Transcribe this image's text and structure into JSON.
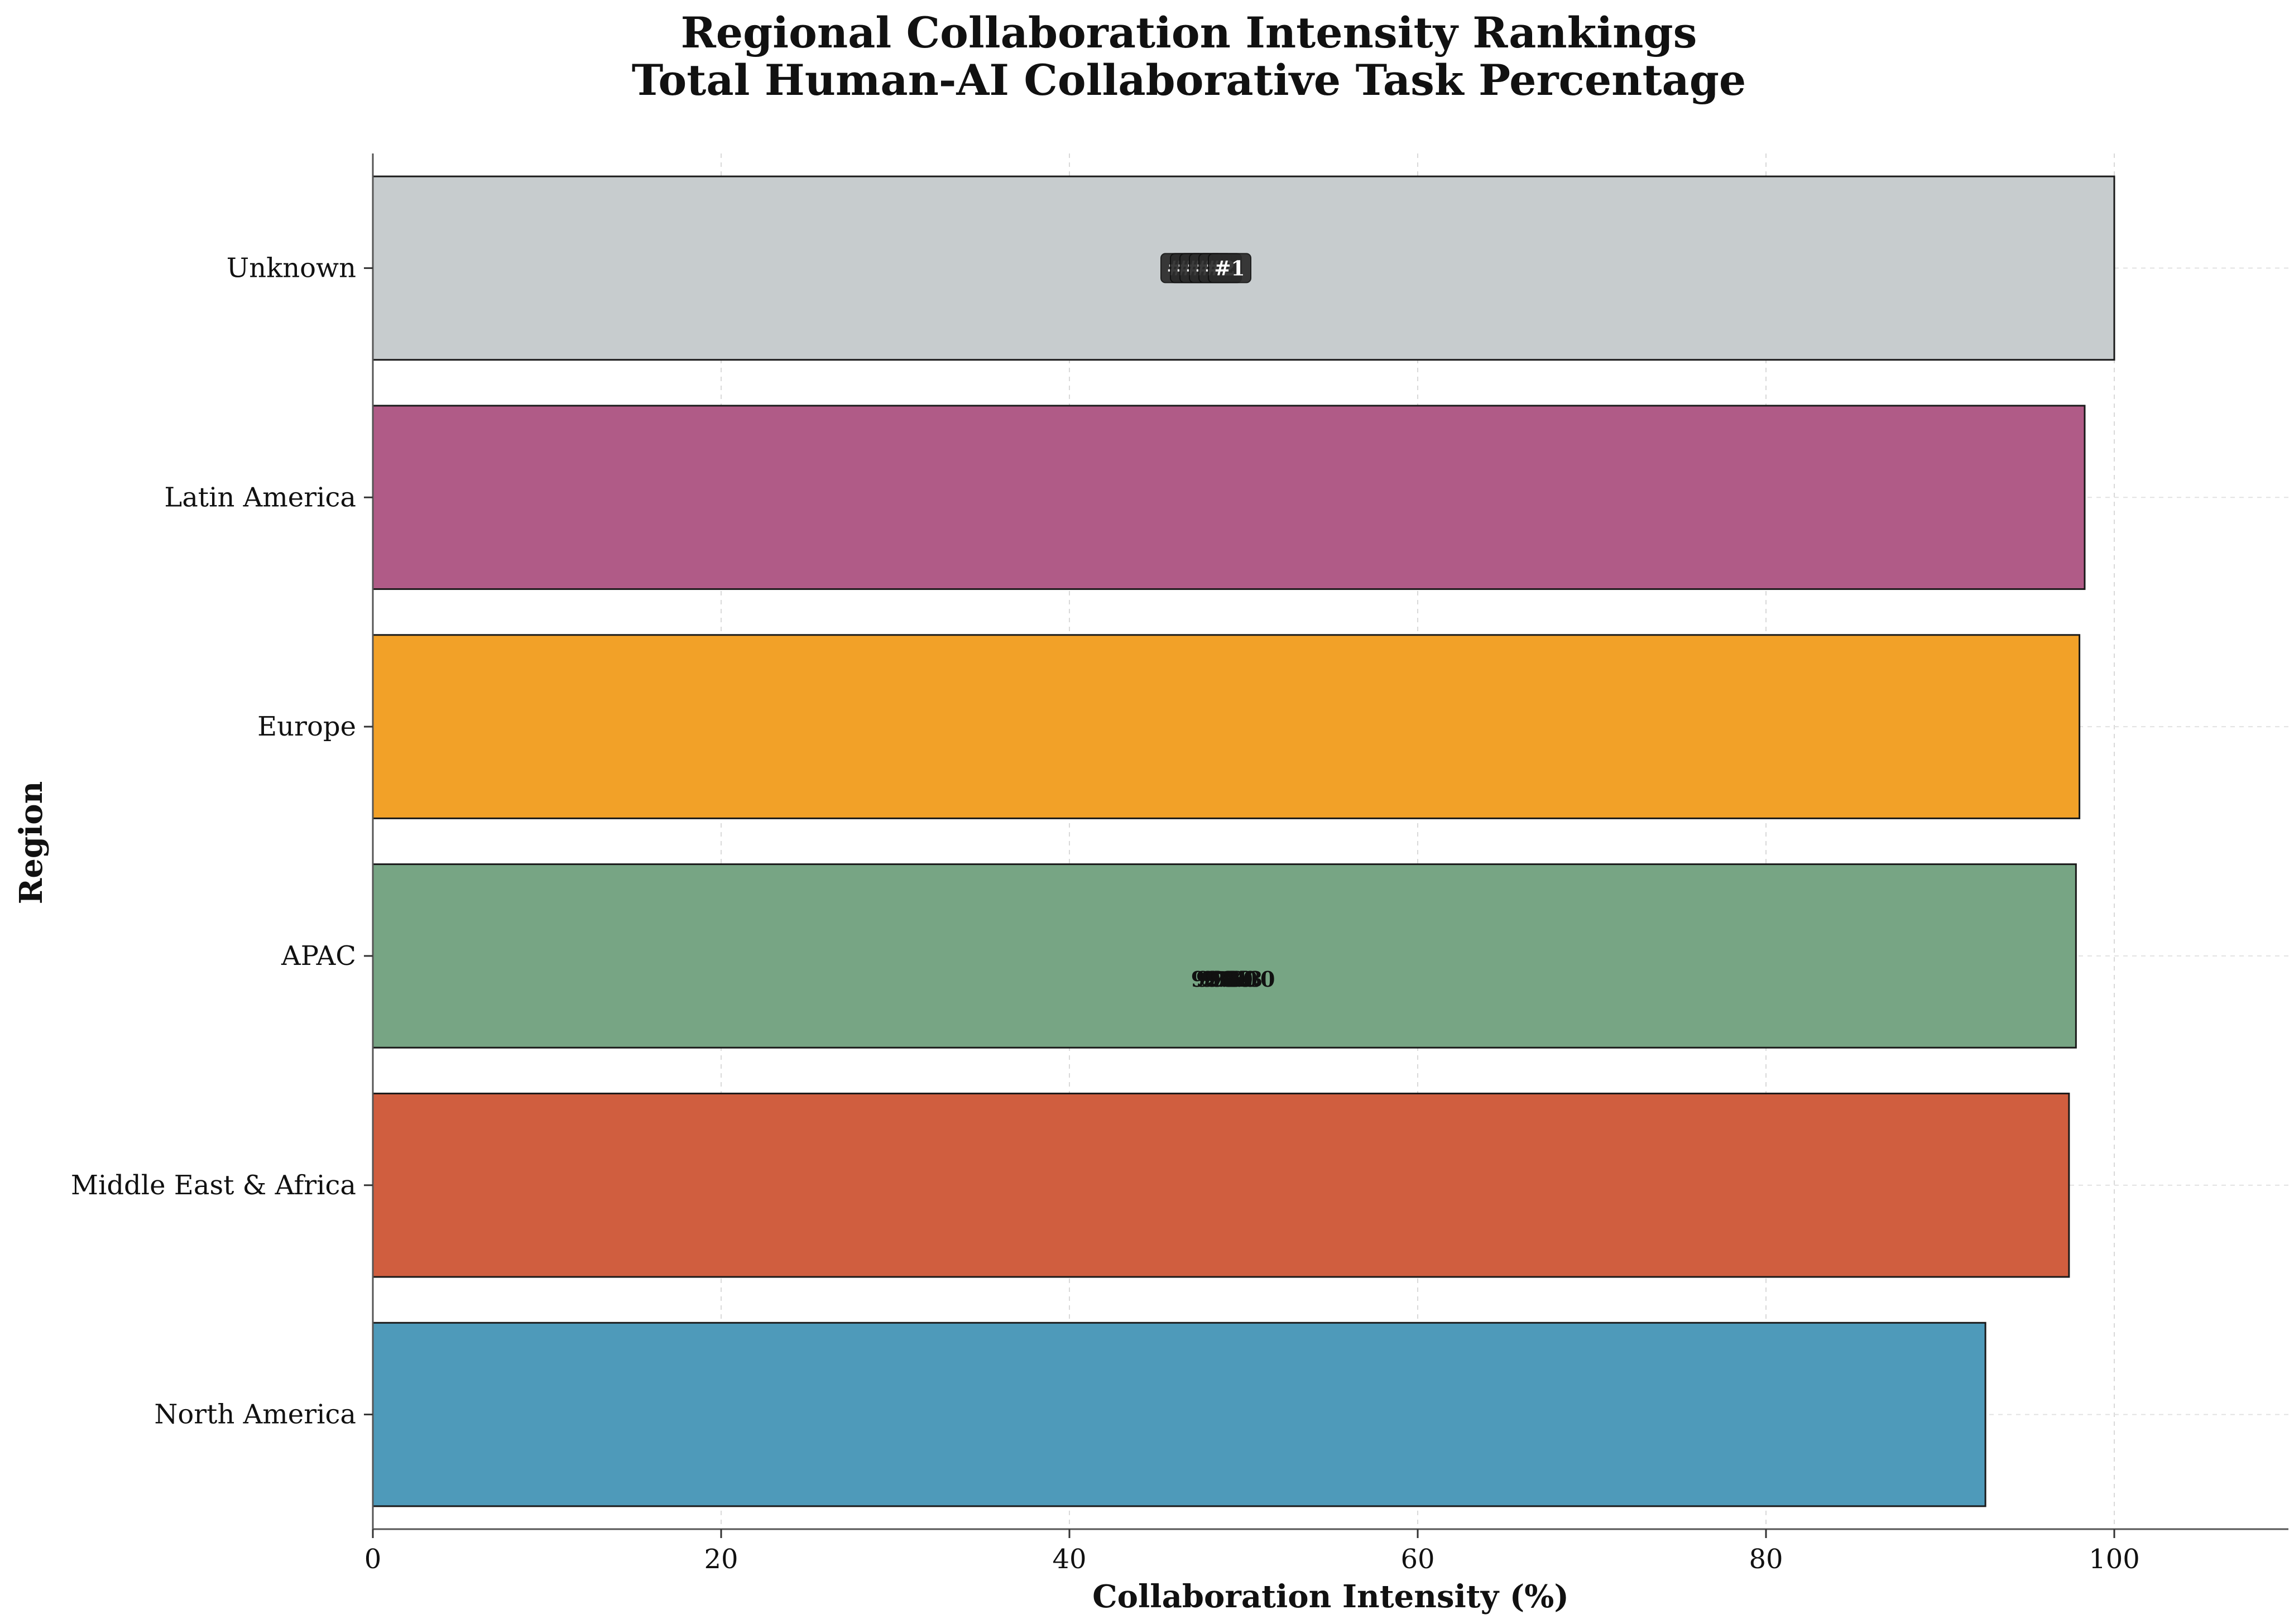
{
  "chart_data": {
    "type": "bar",
    "orientation": "horizontal",
    "title": "Regional Collaboration Intensity Rankings",
    "subtitle": "Total Human-AI Collaborative Task Percentage",
    "xlabel": "Collaboration Intensity (%)",
    "ylabel": "Region",
    "xlim": [
      0,
      110
    ],
    "xticks": [
      0,
      20,
      40,
      60,
      80,
      100
    ],
    "grid": true,
    "categories": [
      "North America",
      "Middle East & Africa",
      "APAC",
      "Europe",
      "Latin America",
      "Unknown"
    ],
    "values": [
      92.6,
      97.4,
      97.8,
      98.0,
      98.3,
      100.0
    ],
    "value_labels": [
      "92.6",
      "97.4",
      "97.8",
      "98.0",
      "98.3",
      "100.0"
    ],
    "ranks": [
      "#6",
      "#5",
      "#4",
      "#3",
      "#2",
      "#1"
    ],
    "colors": [
      "#4e9aba",
      "#d05e3f",
      "#77a584",
      "#f2a128",
      "#b05b87",
      "#c7ccce"
    ]
  }
}
